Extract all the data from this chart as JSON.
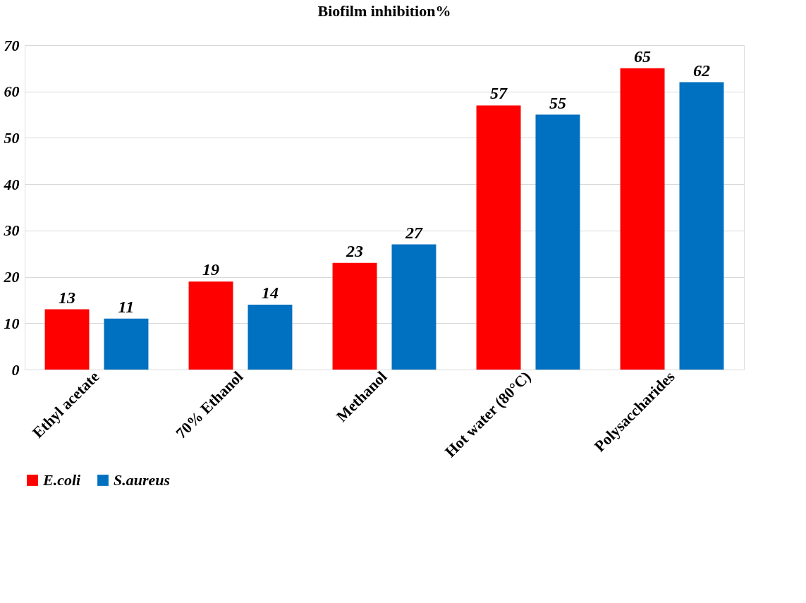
{
  "chart_data": {
    "type": "bar",
    "title": "Biofilm inhibition%",
    "categories": [
      "Ethyl acetate",
      "70% Ethanol",
      "Methanol",
      "Hot water (80°C)",
      "Polysaccharides"
    ],
    "series": [
      {
        "name": "E.coli",
        "color": "#ff0000",
        "values": [
          13,
          19,
          23,
          57,
          65
        ]
      },
      {
        "name": "S.aureus",
        "color": "#0070c0",
        "values": [
          11,
          14,
          27,
          55,
          62
        ]
      }
    ],
    "ylim": [
      0,
      70
    ],
    "yticks": [
      0,
      10,
      20,
      30,
      40,
      50,
      60,
      70
    ],
    "grid": "y",
    "legend": "bottom",
    "data_labels": true
  }
}
